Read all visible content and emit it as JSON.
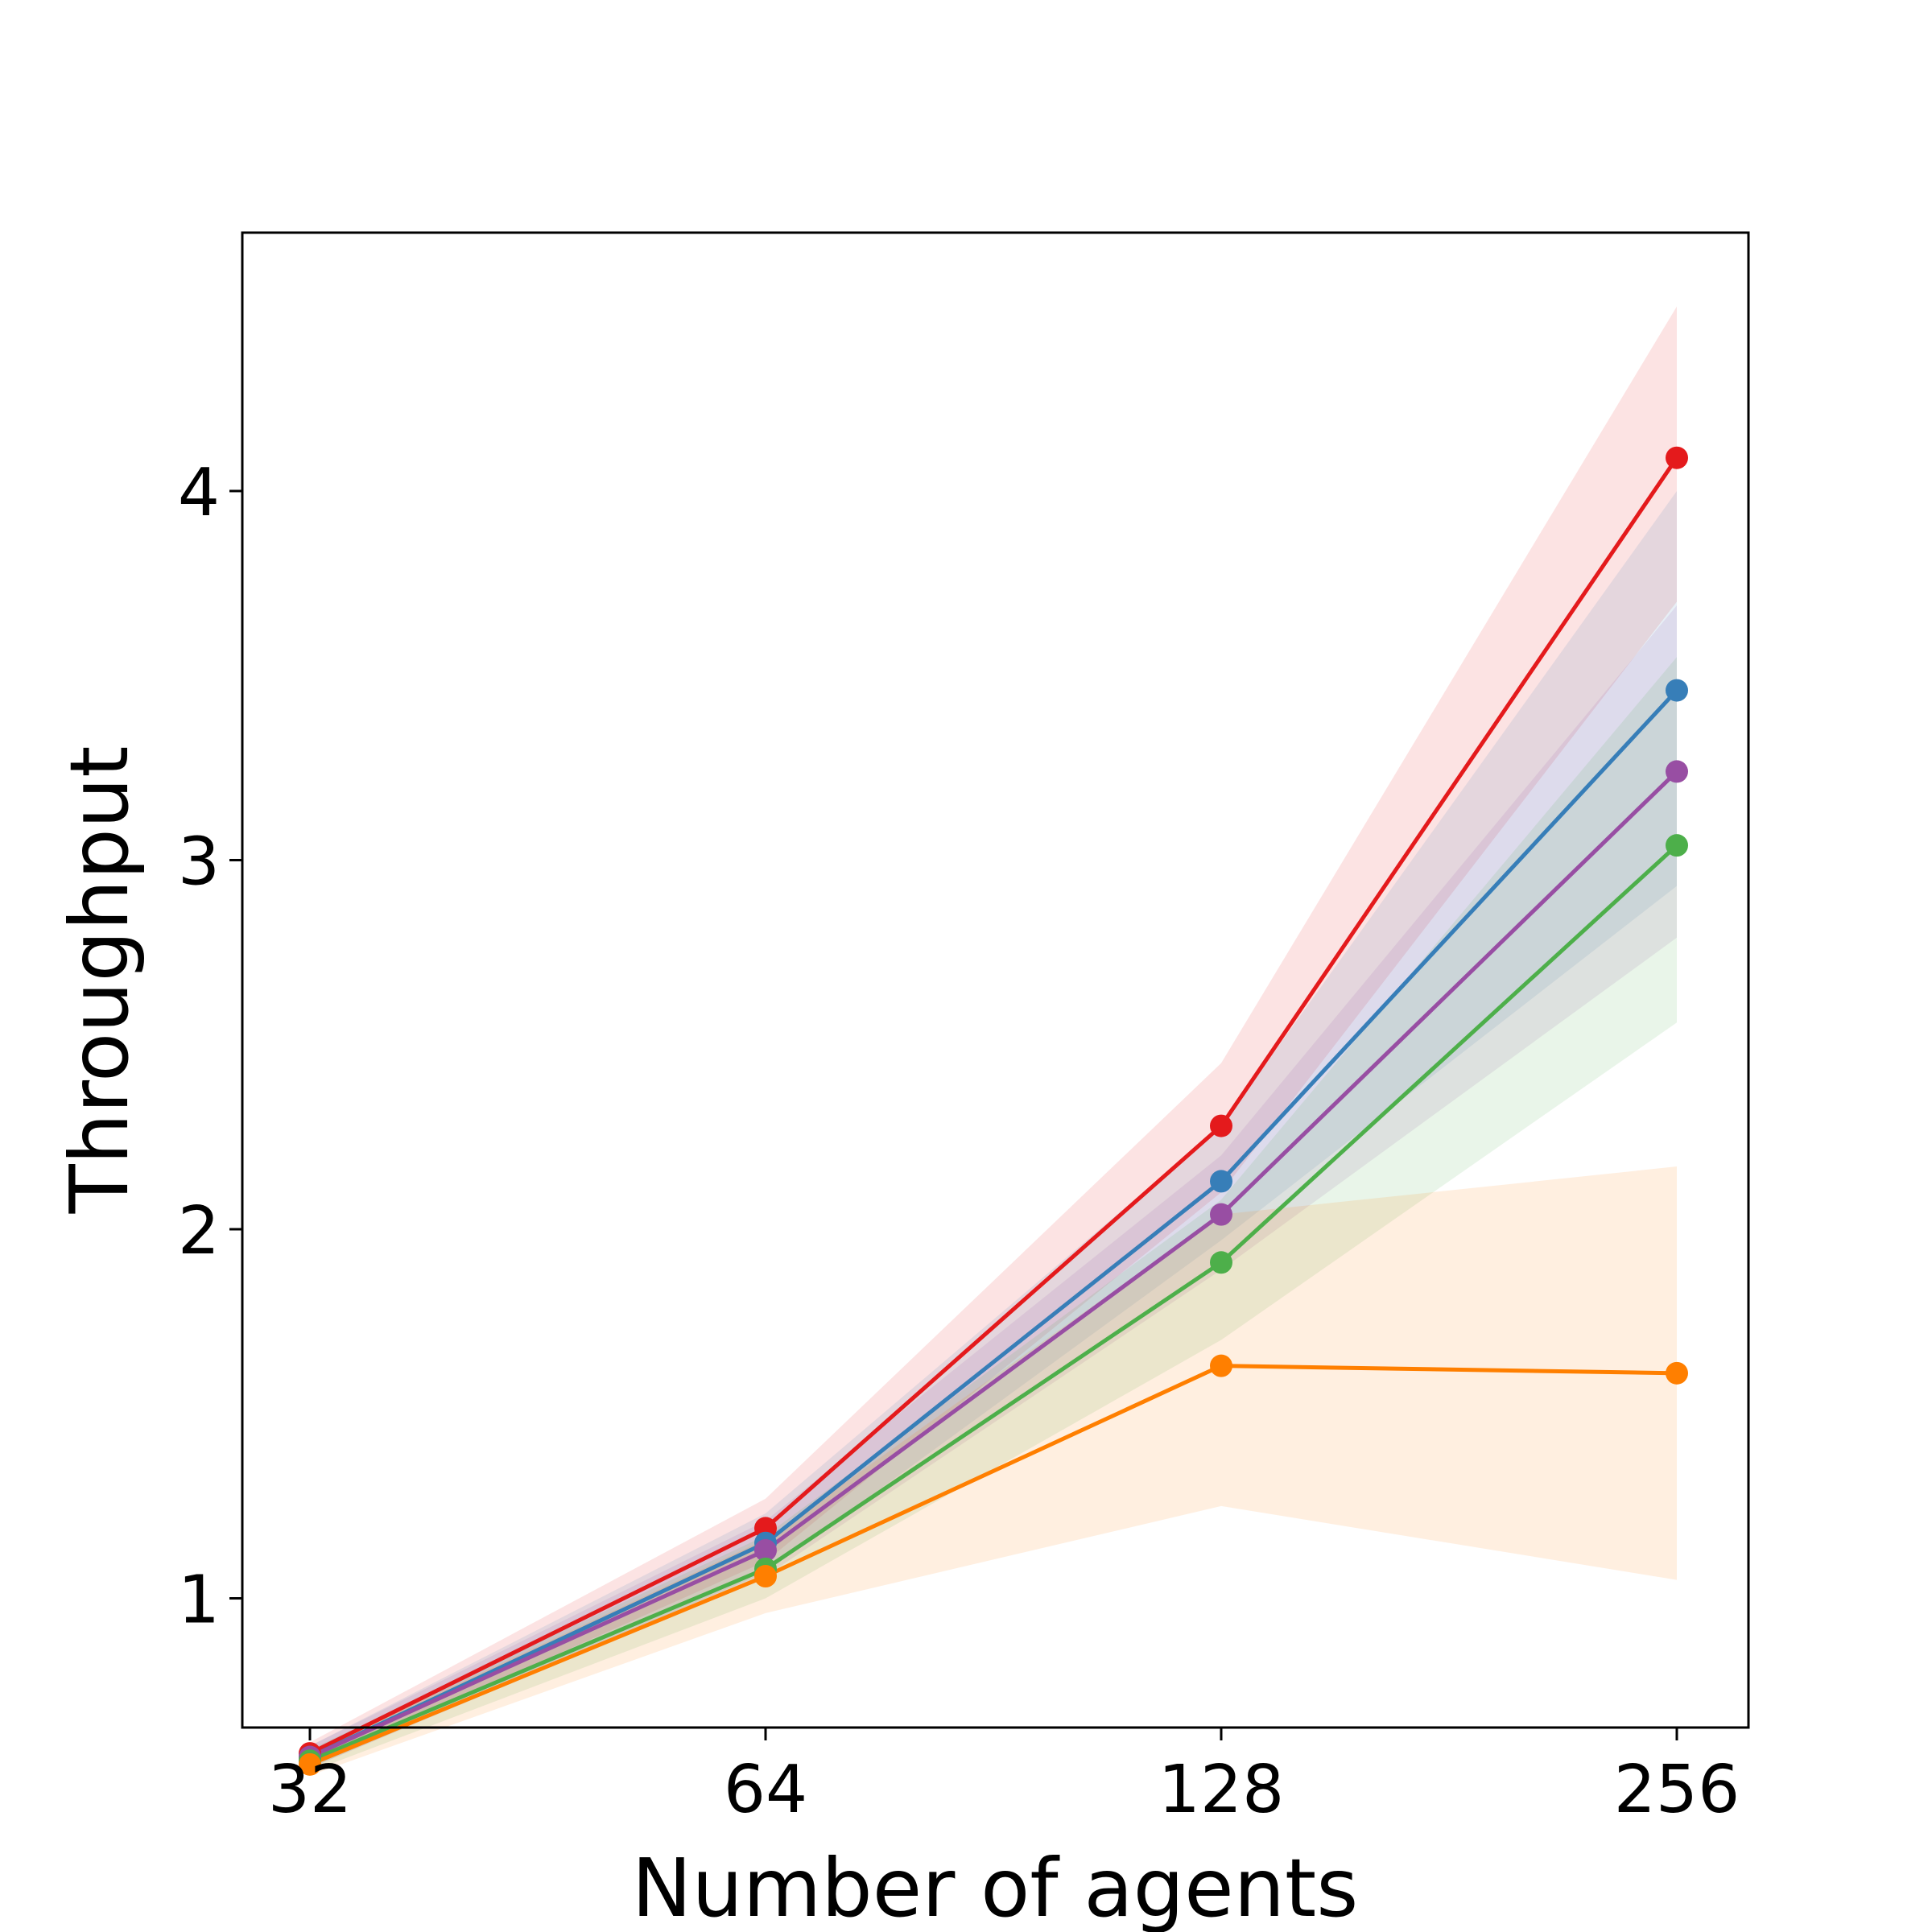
{
  "chart_data": {
    "type": "line",
    "title": "",
    "xlabel": "Number of agents",
    "ylabel": "Throughput",
    "x": [
      32,
      64,
      128,
      256
    ],
    "x_tick_labels": [
      "32",
      "64",
      "128",
      "256"
    ],
    "y_ticks": [
      1,
      2,
      3,
      4
    ],
    "y_tick_labels": [
      "1",
      "2",
      "3",
      "4"
    ],
    "ylim": [
      0.65,
      4.7
    ],
    "grid": false,
    "legend": "none",
    "shaded_band": "uncertainty range around each series",
    "series": [
      {
        "name": "red",
        "color": "#e41a1c",
        "values": [
          0.58,
          1.19,
          2.28,
          4.09
        ],
        "lower": [
          0.55,
          1.1,
          2.1,
          3.7
        ],
        "upper": [
          0.61,
          1.27,
          2.45,
          4.5
        ]
      },
      {
        "name": "blue",
        "color": "#377eb8",
        "values": [
          0.57,
          1.15,
          2.13,
          3.46
        ],
        "lower": [
          0.54,
          1.07,
          1.97,
          2.93
        ],
        "upper": [
          0.6,
          1.23,
          2.28,
          4.0
        ]
      },
      {
        "name": "purple",
        "color": "#984ea3",
        "values": [
          0.57,
          1.13,
          2.04,
          3.24
        ],
        "lower": [
          0.54,
          1.06,
          1.89,
          2.79
        ],
        "upper": [
          0.6,
          1.21,
          2.2,
          3.69
        ]
      },
      {
        "name": "green",
        "color": "#4daf4a",
        "values": [
          0.56,
          1.08,
          1.91,
          3.04
        ],
        "lower": [
          0.53,
          1.0,
          1.7,
          2.56
        ],
        "upper": [
          0.59,
          1.17,
          2.08,
          3.55
        ]
      },
      {
        "name": "orange",
        "color": "#ff7f00",
        "values": [
          0.55,
          1.06,
          1.63,
          1.61
        ],
        "lower": [
          0.52,
          0.96,
          1.25,
          1.05
        ],
        "upper": [
          0.58,
          1.16,
          2.04,
          2.17
        ]
      }
    ]
  }
}
